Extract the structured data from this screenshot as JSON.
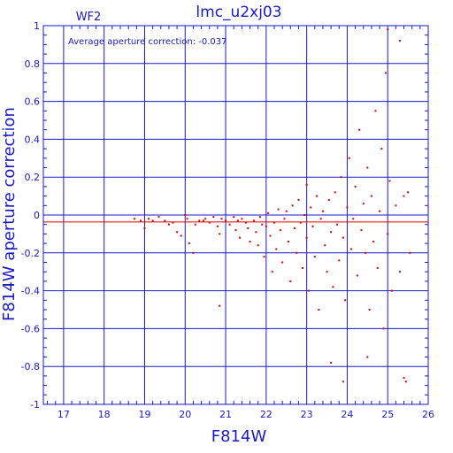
{
  "chart_data": {
    "type": "scatter",
    "title": "lmc_u2xj03",
    "corner_label": "WF2",
    "annotation": "Average aperture correction: -0.037",
    "xlabel": "F814W",
    "ylabel": "F814W aperture correction",
    "xlim": [
      16.5,
      26
    ],
    "ylim": [
      -1,
      1
    ],
    "x_ticks": [
      17,
      18,
      19,
      20,
      21,
      22,
      23,
      24,
      25,
      26
    ],
    "y_ticks": [
      -1,
      -0.8,
      -0.6,
      -0.4,
      -0.2,
      0,
      0.2,
      0.4,
      0.6,
      0.8,
      1
    ],
    "x_tick_labels": [
      "17",
      "18",
      "19",
      "20",
      "21",
      "22",
      "23",
      "24",
      "25",
      "26"
    ],
    "y_tick_labels": [
      "-1",
      "-0.8",
      "-0.6",
      "-0.4",
      "-0.2",
      "0",
      "0.2",
      "0.4",
      "0.6",
      "0.8",
      "1"
    ],
    "grid": true,
    "average_line": -0.037,
    "colors": {
      "axes": "#1a1acc",
      "points": "#e00000",
      "average_line": "#e00000",
      "background": "#ffffff"
    },
    "series": [
      {
        "points": [
          [
            18.75,
            -0.02
          ],
          [
            18.9,
            -0.03
          ],
          [
            19.0,
            -0.07
          ],
          [
            19.1,
            -0.02
          ],
          [
            19.2,
            -0.03
          ],
          [
            19.35,
            -0.01
          ],
          [
            19.5,
            -0.03
          ],
          [
            19.6,
            -0.05
          ],
          [
            19.7,
            -0.04
          ],
          [
            19.8,
            -0.09
          ],
          [
            19.9,
            -0.11
          ],
          [
            20.0,
            0.0
          ],
          [
            20.05,
            -0.02
          ],
          [
            20.1,
            -0.15
          ],
          [
            20.2,
            -0.2
          ],
          [
            20.25,
            -0.05
          ],
          [
            20.35,
            -0.03
          ],
          [
            20.45,
            -0.03
          ],
          [
            20.5,
            -0.02
          ],
          [
            20.6,
            -0.04
          ],
          [
            20.7,
            -0.01
          ],
          [
            20.8,
            -0.06
          ],
          [
            20.85,
            -0.1
          ],
          [
            20.9,
            -0.02
          ],
          [
            21.0,
            -0.03
          ],
          [
            21.1,
            -0.05
          ],
          [
            21.2,
            -0.01
          ],
          [
            21.25,
            -0.08
          ],
          [
            21.3,
            -0.03
          ],
          [
            21.35,
            -0.12
          ],
          [
            21.4,
            -0.02
          ],
          [
            21.5,
            -0.04
          ],
          [
            21.55,
            -0.07
          ],
          [
            21.6,
            -0.14
          ],
          [
            21.7,
            -0.03
          ],
          [
            21.75,
            -0.09
          ],
          [
            21.8,
            -0.16
          ],
          [
            21.85,
            -0.01
          ],
          [
            21.9,
            -0.05
          ],
          [
            21.95,
            -0.22
          ],
          [
            22.0,
            -0.06
          ],
          [
            22.05,
            0.01
          ],
          [
            22.1,
            -0.11
          ],
          [
            22.15,
            -0.3
          ],
          [
            22.2,
            -0.04
          ],
          [
            22.25,
            -0.18
          ],
          [
            22.3,
            0.03
          ],
          [
            22.35,
            -0.08
          ],
          [
            22.4,
            -0.25
          ],
          [
            22.45,
            -0.02
          ],
          [
            22.5,
            0.02
          ],
          [
            22.55,
            -0.14
          ],
          [
            22.6,
            -0.35
          ],
          [
            22.65,
            0.05
          ],
          [
            22.7,
            -0.07
          ],
          [
            22.75,
            -0.2
          ],
          [
            22.8,
            0.08
          ],
          [
            22.85,
            -0.04
          ],
          [
            22.9,
            -0.28
          ],
          [
            22.95,
            0.0
          ],
          [
            23.0,
            -0.12
          ],
          [
            23.0,
            0.16
          ],
          [
            23.05,
            -0.4
          ],
          [
            23.1,
            0.04
          ],
          [
            23.15,
            -0.06
          ],
          [
            23.2,
            -0.22
          ],
          [
            23.25,
            0.1
          ],
          [
            23.3,
            -0.5
          ],
          [
            23.35,
            -0.02
          ],
          [
            23.4,
            0.02
          ],
          [
            23.45,
            -0.16
          ],
          [
            23.5,
            -0.3
          ],
          [
            23.55,
            0.08
          ],
          [
            23.6,
            -0.09
          ],
          [
            23.65,
            -0.38
          ],
          [
            23.7,
            0.12
          ],
          [
            23.75,
            -0.05
          ],
          [
            23.8,
            -0.24
          ],
          [
            23.85,
            0.2
          ],
          [
            23.9,
            -0.12
          ],
          [
            23.95,
            -0.45
          ],
          [
            24.0,
            0.04
          ],
          [
            24.05,
            0.3
          ],
          [
            24.1,
            -0.18
          ],
          [
            24.15,
            -0.02
          ],
          [
            24.2,
            0.15
          ],
          [
            24.25,
            -0.32
          ],
          [
            24.3,
            0.45
          ],
          [
            24.35,
            -0.08
          ],
          [
            24.4,
            0.06
          ],
          [
            24.45,
            -0.2
          ],
          [
            24.5,
            0.25
          ],
          [
            24.55,
            -0.5
          ],
          [
            24.6,
            0.1
          ],
          [
            24.65,
            -0.14
          ],
          [
            24.7,
            0.55
          ],
          [
            24.75,
            -0.28
          ],
          [
            24.8,
            0.02
          ],
          [
            24.85,
            0.35
          ],
          [
            24.9,
            -0.6
          ],
          [
            24.95,
            0.75
          ],
          [
            25.0,
            -0.1
          ],
          [
            25.05,
            0.18
          ],
          [
            25.1,
            -0.4
          ],
          [
            25.2,
            0.05
          ],
          [
            25.3,
            -0.3
          ],
          [
            25.4,
            0.1
          ],
          [
            25.45,
            -0.88
          ],
          [
            25.5,
            0.12
          ],
          [
            25.55,
            -0.2
          ],
          [
            25.3,
            0.92
          ],
          [
            25.0,
            0.98
          ],
          [
            25.4,
            -0.86
          ],
          [
            23.6,
            -0.78
          ],
          [
            23.9,
            -0.88
          ],
          [
            24.5,
            -0.75
          ],
          [
            20.85,
            -0.48
          ]
        ]
      }
    ]
  }
}
